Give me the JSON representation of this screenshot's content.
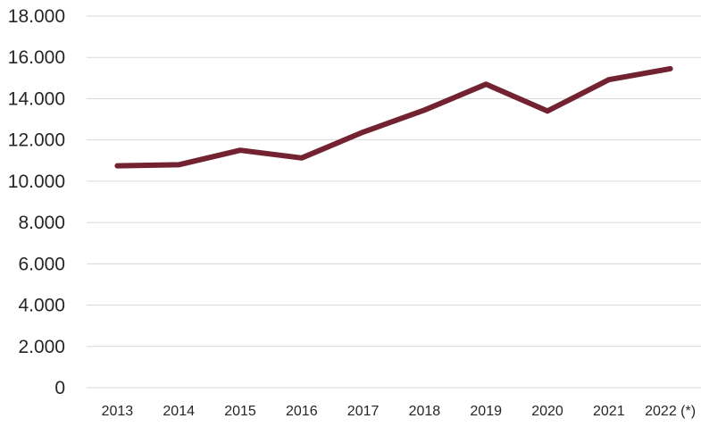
{
  "chart_data": {
    "type": "line",
    "title": "",
    "xlabel": "",
    "ylabel": "",
    "categories": [
      "2013",
      "2014",
      "2015",
      "2016",
      "2017",
      "2018",
      "2019",
      "2020",
      "2021",
      "2022 (*)"
    ],
    "series": [
      {
        "values": [
          10750,
          10800,
          11500,
          11130,
          12380,
          13450,
          14700,
          13400,
          14920,
          15450
        ],
        "color": "#722230"
      }
    ],
    "ylim": [
      0,
      18000
    ],
    "yticks": [
      0,
      2000,
      4000,
      6000,
      8000,
      10000,
      12000,
      14000,
      16000,
      18000
    ],
    "ytick_labels": [
      "0",
      "2.000",
      "4.000",
      "6.000",
      "8.000",
      "10.000",
      "12.000",
      "14.000",
      "16.000",
      "18.000"
    ],
    "grid": true,
    "legend": "none"
  }
}
